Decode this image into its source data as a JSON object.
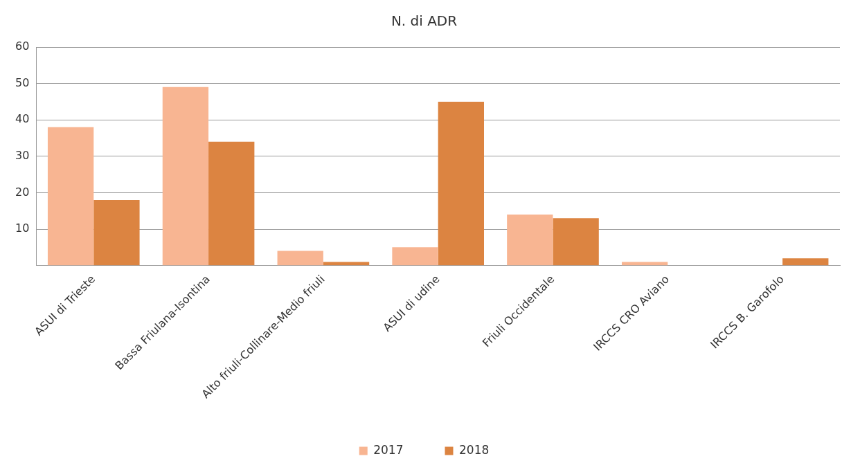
{
  "chart_data": {
    "type": "bar",
    "title": "N. di ADR",
    "categories": [
      "ASUI di Trieste",
      "Bassa Friulana-Isontina",
      "Alto friuli-Collinare-Medio friuli",
      "ASUI di udine",
      "Friuli Occidentale",
      "IRCCS CRO Aviano",
      "IRCCS B. Garofolo"
    ],
    "series": [
      {
        "name": "2017",
        "color": "#f8b592",
        "values": [
          38,
          49,
          4,
          5,
          14,
          1,
          0
        ]
      },
      {
        "name": "2018",
        "color": "#dc8441",
        "values": [
          18,
          34,
          1,
          45,
          13,
          0,
          2
        ]
      }
    ],
    "ylim": [
      0,
      60
    ],
    "yticks": [
      {
        "value": 0,
        "label": null
      },
      10,
      20,
      30,
      40,
      50,
      60
    ],
    "grid": "y",
    "legend": "bottom"
  }
}
